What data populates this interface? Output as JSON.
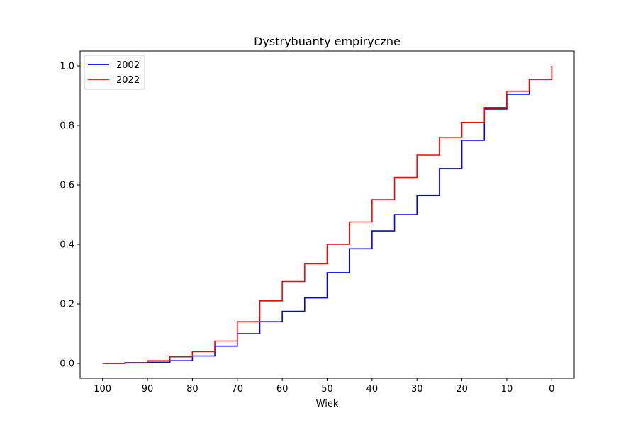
{
  "chart_data": {
    "type": "line",
    "title": "Dystrybuanty empiryczne",
    "xlabel": "Wiek",
    "ylabel": "",
    "xlim": [
      105,
      -5
    ],
    "ylim": [
      -0.05,
      1.05
    ],
    "x_inverted": true,
    "step": true,
    "grid": false,
    "legend_position": "top-left",
    "x_ticks": [
      "100",
      "90",
      "80",
      "70",
      "60",
      "50",
      "40",
      "30",
      "20",
      "10",
      "0"
    ],
    "y_ticks": [
      "0.0",
      "0.2",
      "0.4",
      "0.6",
      "0.8",
      "1.0"
    ],
    "series": [
      {
        "name": "2002",
        "color": "#0000ff",
        "points": [
          [
            100,
            0.0
          ],
          [
            95,
            0.002
          ],
          [
            90,
            0.004
          ],
          [
            85,
            0.009
          ],
          [
            80,
            0.025
          ],
          [
            75,
            0.058
          ],
          [
            70,
            0.1
          ],
          [
            65,
            0.14
          ],
          [
            60,
            0.175
          ],
          [
            55,
            0.22
          ],
          [
            50,
            0.305
          ],
          [
            45,
            0.385
          ],
          [
            40,
            0.445
          ],
          [
            35,
            0.5
          ],
          [
            30,
            0.565
          ],
          [
            25,
            0.655
          ],
          [
            20,
            0.75
          ],
          [
            15,
            0.855
          ],
          [
            10,
            0.905
          ],
          [
            5,
            0.955
          ],
          [
            0,
            1.0
          ]
        ]
      },
      {
        "name": "2022",
        "color": "#ff0000",
        "points": [
          [
            100,
            0.0
          ],
          [
            95,
            0.003
          ],
          [
            90,
            0.009
          ],
          [
            85,
            0.022
          ],
          [
            80,
            0.04
          ],
          [
            75,
            0.075
          ],
          [
            70,
            0.14
          ],
          [
            65,
            0.21
          ],
          [
            60,
            0.275
          ],
          [
            55,
            0.335
          ],
          [
            50,
            0.4
          ],
          [
            45,
            0.475
          ],
          [
            40,
            0.55
          ],
          [
            35,
            0.625
          ],
          [
            30,
            0.7
          ],
          [
            25,
            0.76
          ],
          [
            20,
            0.81
          ],
          [
            15,
            0.86
          ],
          [
            10,
            0.915
          ],
          [
            5,
            0.955
          ],
          [
            0,
            1.0
          ]
        ]
      }
    ]
  }
}
